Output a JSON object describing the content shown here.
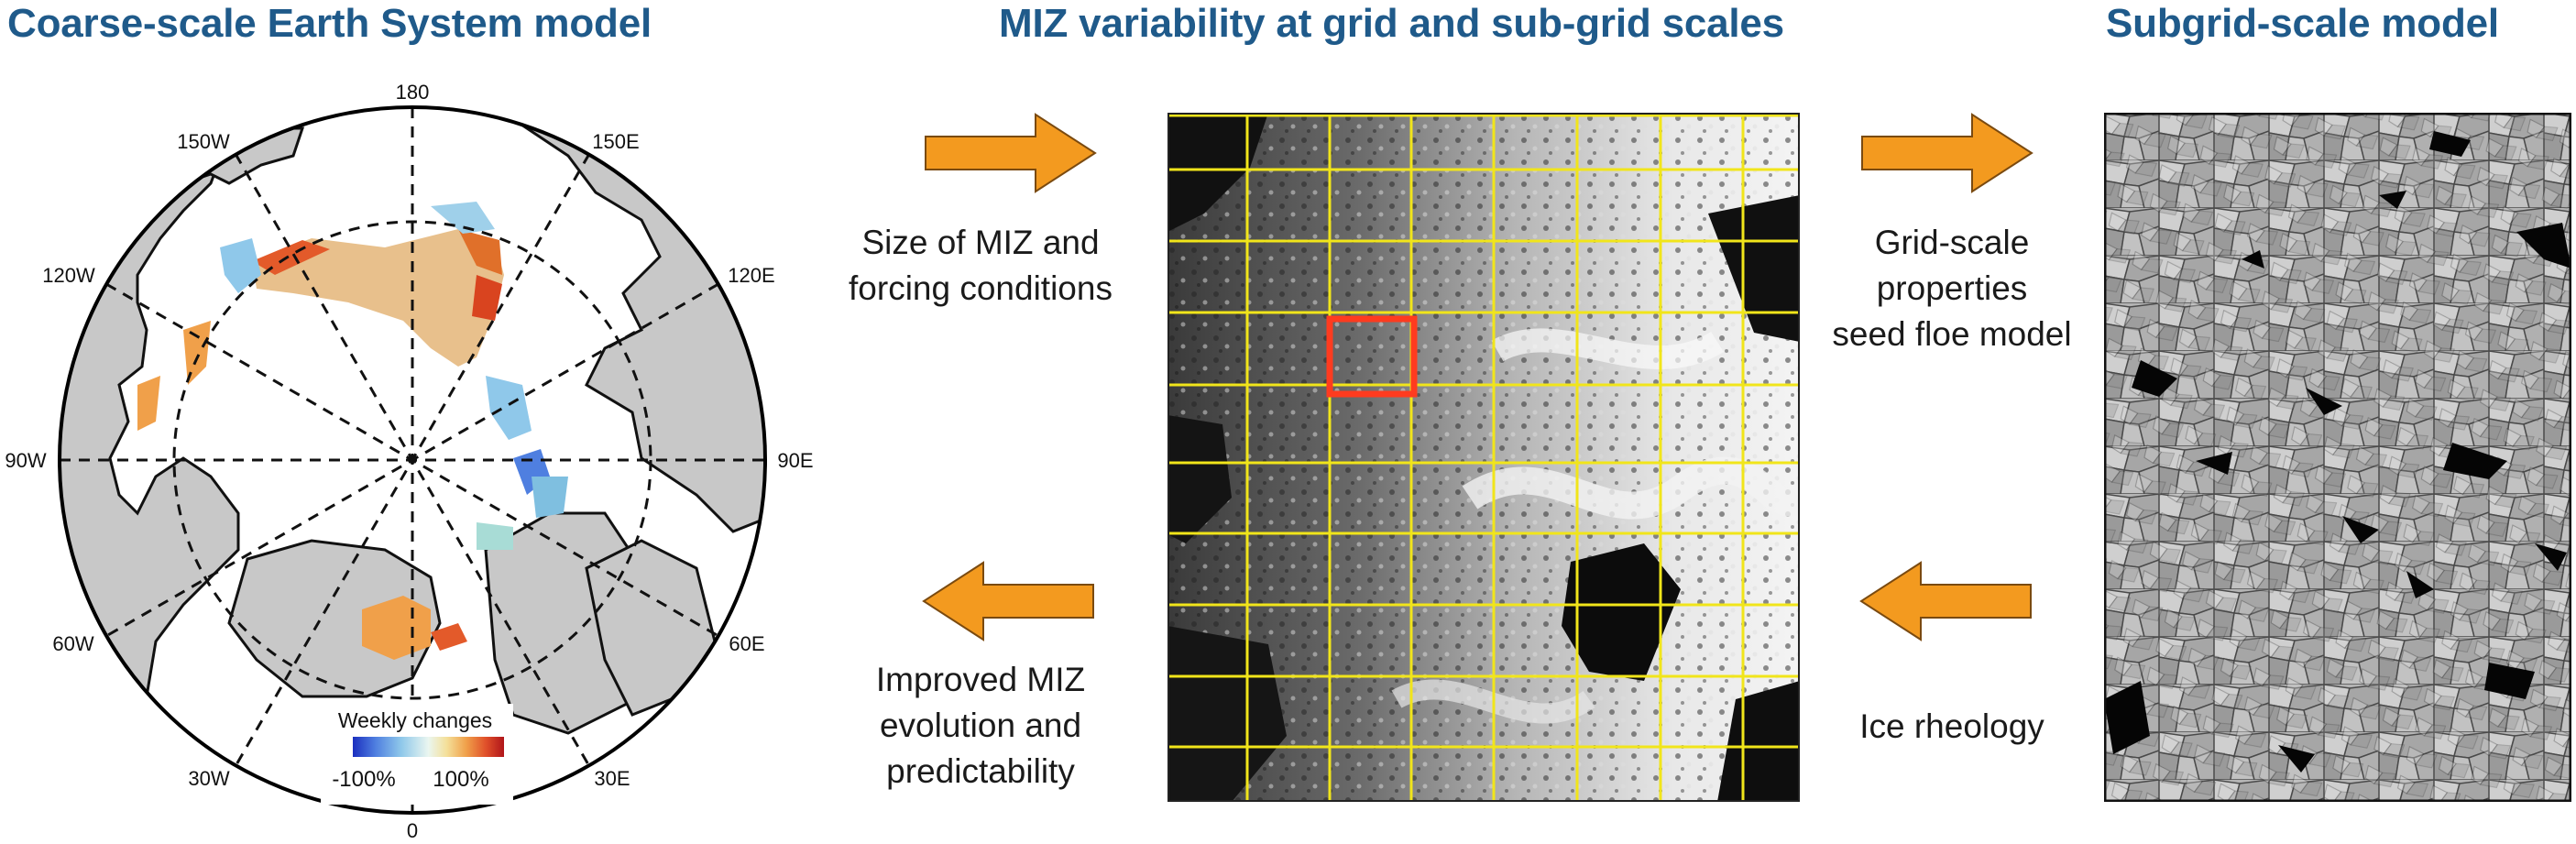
{
  "colors": {
    "title": "#1f5a8a",
    "arrow": "#f39a1f",
    "grid": "#f1e51a",
    "highlight": "#ff3b1f",
    "land": "#c8c8c8"
  },
  "titles": {
    "left": "Coarse-scale Earth System model",
    "center": "MIZ variability at grid and sub-grid scales",
    "right": "Subgrid-scale model"
  },
  "map": {
    "longitude_labels": {
      "top": "180",
      "bottom": "0",
      "left": "90W",
      "right": "90E",
      "upper_left_1": "150W",
      "upper_left_2": "120W",
      "upper_right_1": "150E",
      "upper_right_2": "120E",
      "lower_left_1": "60W",
      "lower_left_2": "30W",
      "lower_right_1": "60E",
      "lower_right_2": "30E"
    },
    "legend": {
      "title": "Weekly changes",
      "min_label": "-100%",
      "max_label": "100%",
      "colors": [
        "#1b2fbf",
        "#4f7fe0",
        "#8fc8ea",
        "#cdeee6",
        "#f4e09a",
        "#f0a04a",
        "#e0502a",
        "#b0151a"
      ]
    }
  },
  "captions": {
    "top_left": [
      "Size of MIZ and",
      "forcing conditions"
    ],
    "bottom_left": [
      "Improved MIZ",
      "evolution and",
      "predictability"
    ],
    "top_right": [
      "Grid-scale",
      "properties",
      "seed floe model"
    ],
    "bottom_right": [
      "Ice rheology"
    ]
  },
  "arrows": {
    "top_left": "right",
    "bottom_left": "left",
    "top_right": "right",
    "bottom_right": "left"
  },
  "icons": {
    "arrow_right": "arrow-right-icon",
    "arrow_left": "arrow-left-icon"
  }
}
